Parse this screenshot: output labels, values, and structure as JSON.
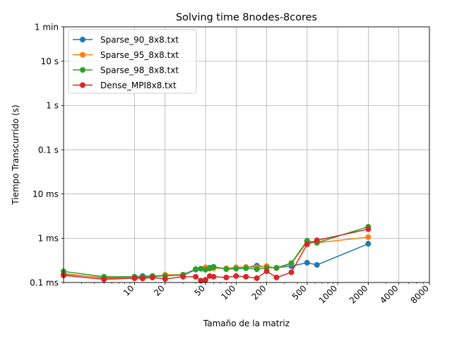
{
  "chart_data": {
    "type": "line",
    "title": "Solving time 8nodes-8cores",
    "xlabel": "Tamaño de la matriz",
    "ylabel": "Tiempo Transcurrido (s)",
    "x_scale": "log",
    "y_scale": "log",
    "xlim": [
      2,
      8000
    ],
    "ylim": [
      0.0001,
      60
    ],
    "x_ticks": [
      {
        "value": 10,
        "label": "10"
      },
      {
        "value": 20,
        "label": "20"
      },
      {
        "value": 50,
        "label": "50"
      },
      {
        "value": 100,
        "label": "100"
      },
      {
        "value": 200,
        "label": "200"
      },
      {
        "value": 500,
        "label": "500"
      },
      {
        "value": 1000,
        "label": "1000"
      },
      {
        "value": 2000,
        "label": "2000"
      },
      {
        "value": 4000,
        "label": "4000"
      },
      {
        "value": 8000,
        "label": "8000"
      }
    ],
    "y_ticks": [
      {
        "value": 0.0001,
        "label": "0.1 ms"
      },
      {
        "value": 0.001,
        "label": "1 ms"
      },
      {
        "value": 0.01,
        "label": "10 ms"
      },
      {
        "value": 0.1,
        "label": "0.1 s"
      },
      {
        "value": 1,
        "label": "1 s"
      },
      {
        "value": 10,
        "label": "10 s"
      },
      {
        "value": 60,
        "label": "1 min"
      }
    ],
    "grid": true,
    "legend_position": "top-left",
    "series": [
      {
        "name": "Sparse_90_8x8.txt",
        "color": "#1f77b4",
        "points": [
          [
            2,
            0.000155
          ],
          [
            5,
            0.000128
          ],
          [
            10,
            0.000135
          ],
          [
            12,
            0.00014
          ],
          [
            15,
            0.00014
          ],
          [
            20,
            0.000145
          ],
          [
            30,
            0.000145
          ],
          [
            40,
            0.000195
          ],
          [
            45,
            0.000205
          ],
          [
            50,
            0.00021
          ],
          [
            55,
            0.000215
          ],
          [
            60,
            0.000225
          ],
          [
            80,
            0.000205
          ],
          [
            100,
            0.000215
          ],
          [
            125,
            0.00022
          ],
          [
            160,
            0.00024
          ],
          [
            200,
            0.000225
          ],
          [
            250,
            0.000215
          ],
          [
            350,
            0.000235
          ],
          [
            500,
            0.00028
          ],
          [
            625,
            0.00025
          ],
          [
            2000,
            0.00075
          ]
        ]
      },
      {
        "name": "Sparse_95_8x8.txt",
        "color": "#ff7f0e",
        "points": [
          [
            2,
            0.00016
          ],
          [
            5,
            0.000125
          ],
          [
            10,
            0.000125
          ],
          [
            12,
            0.000122
          ],
          [
            15,
            0.00013
          ],
          [
            20,
            0.00015
          ],
          [
            30,
            0.00015
          ],
          [
            40,
            0.0002
          ],
          [
            45,
            0.000205
          ],
          [
            50,
            0.00022
          ],
          [
            55,
            0.000205
          ],
          [
            60,
            0.00021
          ],
          [
            80,
            0.00021
          ],
          [
            100,
            0.00022
          ],
          [
            125,
            0.000225
          ],
          [
            160,
            0.00022
          ],
          [
            200,
            0.000235
          ],
          [
            250,
            0.00021
          ],
          [
            350,
            0.000265
          ],
          [
            500,
            0.00082
          ],
          [
            625,
            0.00079
          ],
          [
            2000,
            0.00106
          ]
        ]
      },
      {
        "name": "Sparse_98_8x8.txt",
        "color": "#2ca02c",
        "points": [
          [
            2,
            0.000178
          ],
          [
            5,
            0.000135
          ],
          [
            10,
            0.000135
          ],
          [
            12,
            0.000132
          ],
          [
            15,
            0.00014
          ],
          [
            20,
            0.00014
          ],
          [
            30,
            0.00015
          ],
          [
            40,
            0.0002
          ],
          [
            45,
            0.000205
          ],
          [
            50,
            0.000195
          ],
          [
            55,
            0.00021
          ],
          [
            60,
            0.000225
          ],
          [
            80,
            0.0002
          ],
          [
            100,
            0.000205
          ],
          [
            125,
            0.00021
          ],
          [
            160,
            0.0002
          ],
          [
            200,
            0.000215
          ],
          [
            250,
            0.000215
          ],
          [
            350,
            0.000275
          ],
          [
            500,
            0.00088
          ],
          [
            625,
            0.00079
          ],
          [
            2000,
            0.00182
          ]
        ]
      },
      {
        "name": "Dense_MPI8x8.txt",
        "color": "#d62728",
        "points": [
          [
            2,
            0.000145
          ],
          [
            5,
            0.000118
          ],
          [
            10,
            0.000125
          ],
          [
            12,
            0.000125
          ],
          [
            15,
            0.00013
          ],
          [
            20,
            0.00012
          ],
          [
            30,
            0.000135
          ],
          [
            40,
            0.000135
          ],
          [
            45,
            0.00011
          ],
          [
            50,
            0.000115
          ],
          [
            55,
            0.00014
          ],
          [
            60,
            0.000135
          ],
          [
            80,
            0.00013
          ],
          [
            100,
            0.00014
          ],
          [
            125,
            0.000135
          ],
          [
            160,
            0.000125
          ],
          [
            200,
            0.00018
          ],
          [
            250,
            0.00013
          ],
          [
            350,
            0.00017
          ],
          [
            500,
            0.00073
          ],
          [
            625,
            0.0009
          ],
          [
            2000,
            0.0016
          ]
        ]
      }
    ]
  }
}
